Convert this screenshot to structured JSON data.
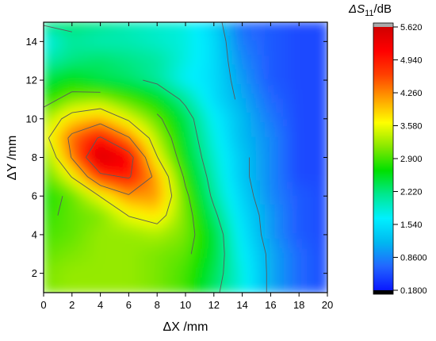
{
  "chart_data": {
    "type": "heatmap",
    "xlabel": "ΔX /mm",
    "ylabel": "ΔY /mm",
    "colorbar_title": {
      "main": "ΔS",
      "sub": "11",
      "unit": "/dB"
    },
    "xlim": [
      0,
      20
    ],
    "ylim": [
      1,
      15
    ],
    "x_ticks": [
      0,
      2,
      4,
      6,
      8,
      10,
      12,
      14,
      16,
      18,
      20
    ],
    "y_ticks": [
      2,
      4,
      6,
      8,
      10,
      12,
      14
    ],
    "colorbar_range": [
      0.18,
      5.62
    ],
    "colorbar_ticks": [
      "5.620",
      "4.940",
      "4.260",
      "3.580",
      "2.900",
      "2.220",
      "1.540",
      "0.8600",
      "0.1800"
    ],
    "colorbar_ticks_numeric": [
      5.62,
      4.94,
      4.26,
      3.58,
      2.9,
      2.22,
      1.54,
      0.86,
      0.18
    ],
    "colorbar_stops": [
      "#000000",
      "#0a18ff",
      "#2266ff",
      "#00b8f0",
      "#00f0ff",
      "#00e890",
      "#00e000",
      "#88e800",
      "#ffff00",
      "#ffa000",
      "#ff4000",
      "#ff0000",
      "#d00000",
      "#aaaaaa"
    ],
    "grid": false,
    "contour_lines": true,
    "x": [
      0,
      2,
      4,
      6,
      8,
      10,
      12,
      14,
      16,
      18,
      20
    ],
    "y": [
      15,
      14,
      13,
      12,
      11,
      10,
      9,
      8,
      7,
      6,
      5,
      4,
      3,
      2,
      1
    ],
    "z": [
      [
        2.3,
        2.3,
        2.2,
        2.0,
        1.9,
        1.8,
        1.4,
        0.7,
        0.6,
        0.5,
        0.5
      ],
      [
        1.7,
        2.1,
        2.0,
        2.0,
        1.9,
        1.8,
        1.5,
        0.8,
        0.6,
        0.5,
        0.5
      ],
      [
        2.0,
        2.2,
        2.3,
        2.2,
        2.1,
        1.8,
        1.5,
        0.9,
        0.6,
        0.5,
        0.5
      ],
      [
        2.4,
        2.6,
        2.4,
        2.3,
        2.1,
        1.7,
        1.5,
        1.0,
        0.6,
        0.5,
        0.5
      ],
      [
        2.7,
        3.1,
        3.2,
        2.9,
        2.6,
        2.1,
        1.5,
        1.1,
        0.7,
        0.5,
        0.5
      ],
      [
        3.2,
        3.8,
        4.0,
        3.5,
        3.0,
        2.4,
        1.7,
        1.2,
        0.8,
        0.5,
        0.5
      ],
      [
        3.4,
        4.4,
        5.0,
        4.3,
        3.3,
        2.5,
        1.8,
        1.2,
        0.9,
        0.5,
        0.5
      ],
      [
        3.0,
        4.3,
        5.6,
        5.2,
        3.6,
        2.6,
        1.9,
        1.3,
        0.9,
        0.5,
        0.5
      ],
      [
        2.9,
        3.6,
        4.8,
        5.0,
        4.1,
        2.8,
        2.0,
        1.3,
        0.9,
        0.5,
        0.5
      ],
      [
        2.7,
        3.0,
        3.6,
        4.2,
        4.2,
        3.0,
        2.1,
        1.4,
        0.9,
        0.6,
        0.5
      ],
      [
        2.8,
        3.0,
        3.1,
        3.6,
        3.8,
        3.1,
        2.3,
        1.5,
        1.0,
        0.6,
        0.5
      ],
      [
        2.9,
        3.0,
        3.2,
        3.2,
        3.3,
        3.1,
        2.5,
        1.6,
        1.0,
        0.6,
        0.5
      ],
      [
        3.0,
        3.1,
        3.2,
        3.2,
        3.1,
        3.0,
        2.5,
        1.7,
        1.1,
        0.7,
        0.5
      ],
      [
        3.1,
        3.2,
        3.2,
        3.2,
        3.1,
        2.9,
        2.4,
        1.8,
        1.1,
        0.7,
        0.5
      ],
      [
        3.1,
        3.2,
        3.2,
        3.2,
        3.1,
        2.9,
        2.3,
        1.8,
        1.1,
        0.7,
        0.5
      ]
    ]
  }
}
